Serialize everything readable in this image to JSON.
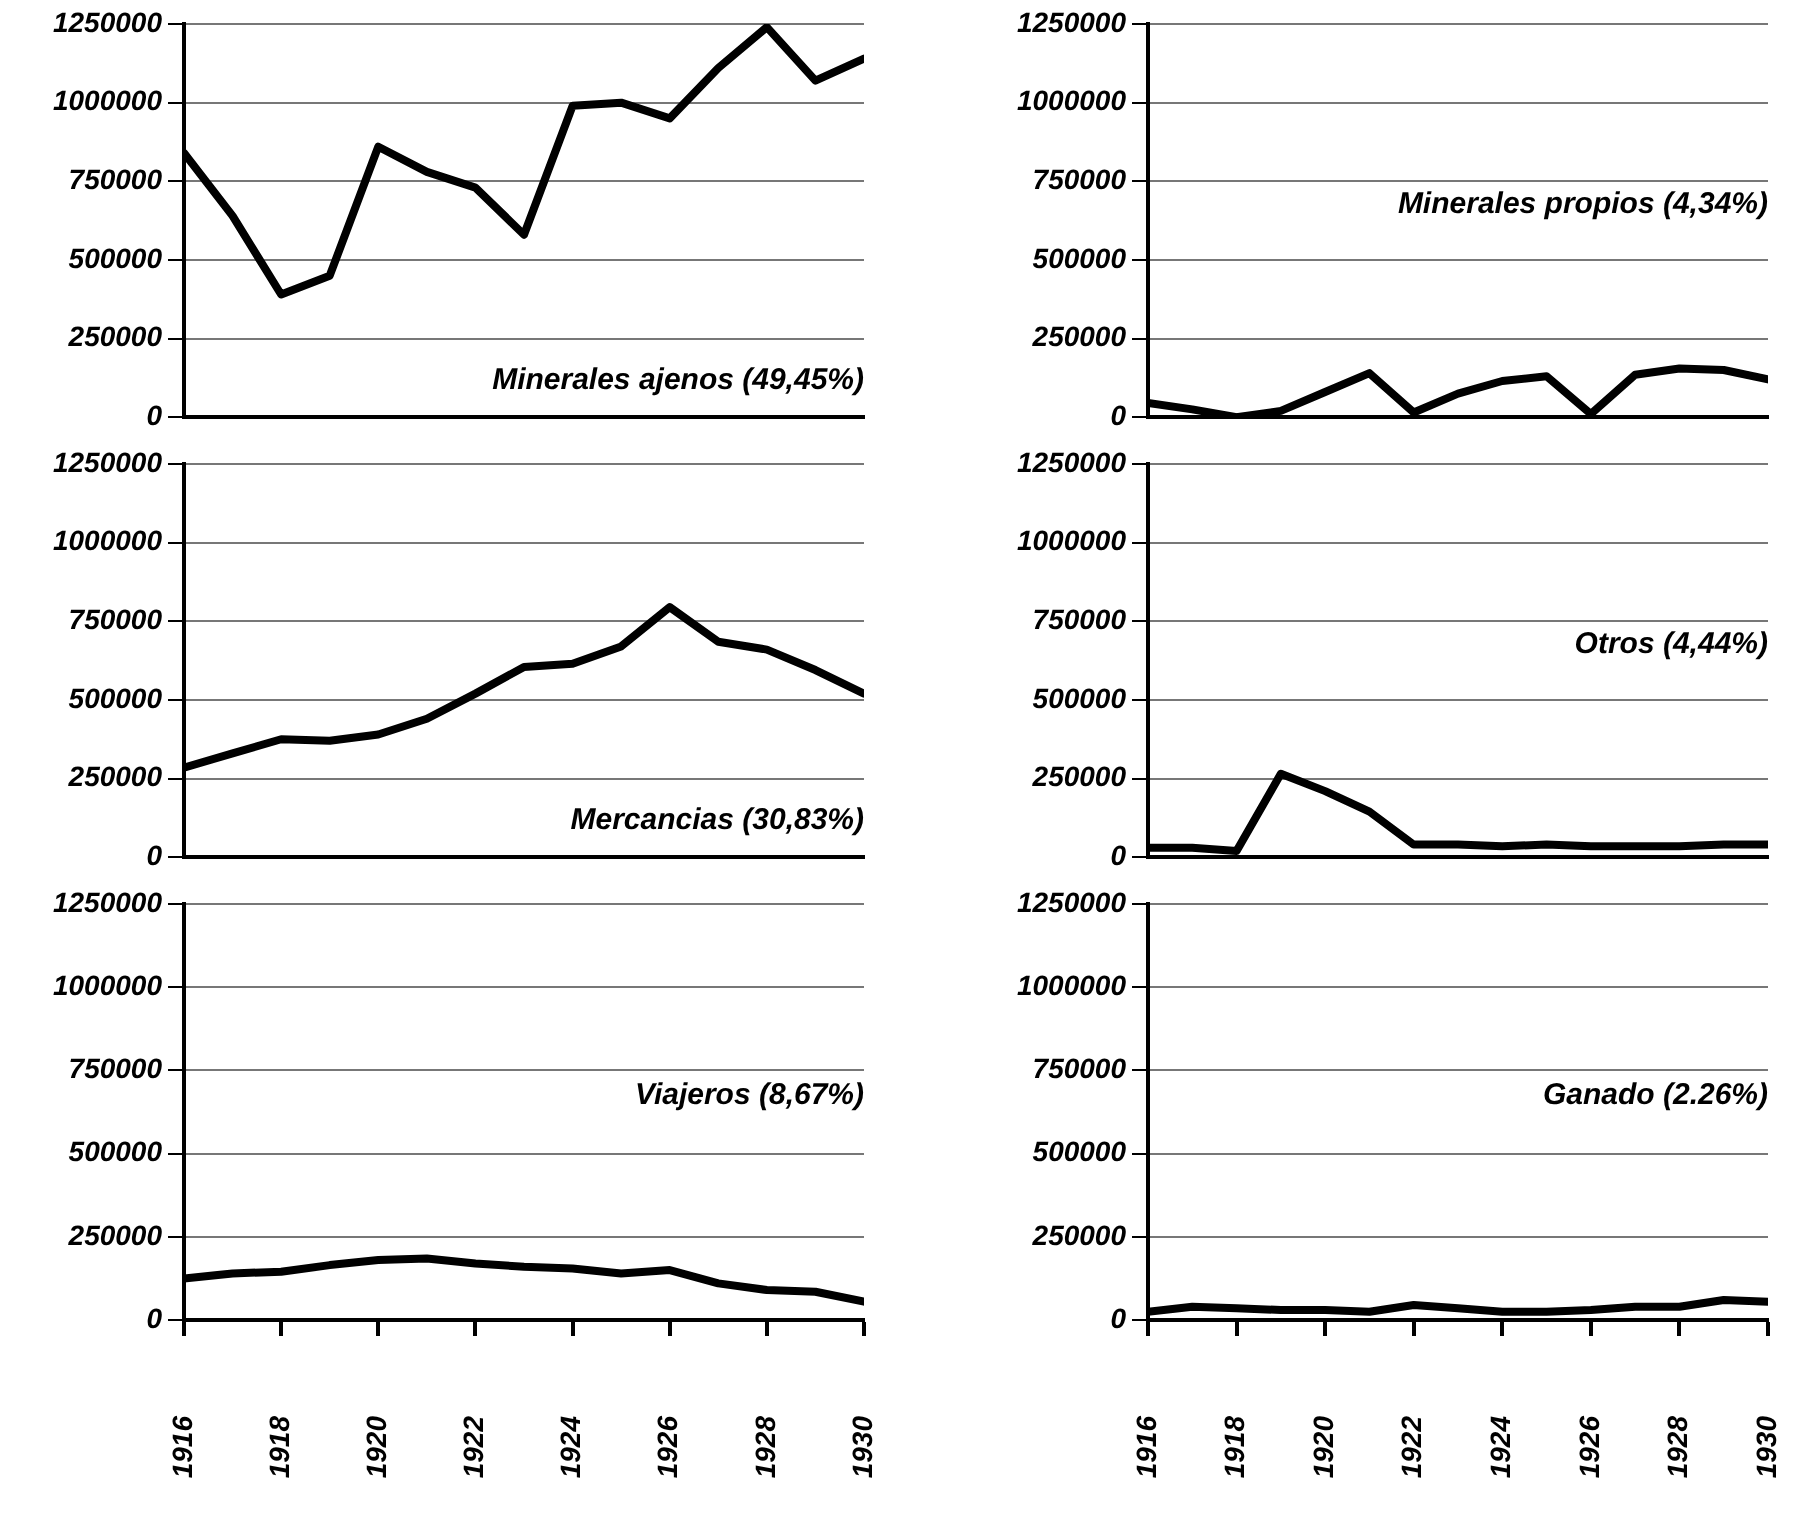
{
  "chart_data": [
    {
      "type": "line",
      "x": [
        1916,
        1917,
        1918,
        1919,
        1920,
        1921,
        1922,
        1923,
        1924,
        1925,
        1926,
        1927,
        1928,
        1929,
        1930
      ],
      "series": [
        {
          "color": "#000000",
          "values": [
            840000,
            640000,
            390000,
            450000,
            860000,
            780000,
            730000,
            580000,
            990000,
            1000000,
            950000,
            1110000,
            1240000,
            1070000,
            1140000
          ]
        }
      ],
      "annotations": [
        "Minerales ajenos (49,45%)"
      ],
      "xlim": [
        1916,
        1930
      ],
      "xticks": [
        1916,
        1918,
        1920,
        1922,
        1924,
        1926,
        1928,
        1930
      ],
      "ylim": [
        0,
        1250000
      ],
      "yticks": [
        0,
        250000,
        500000,
        750000,
        1000000,
        1250000
      ],
      "grid": "y",
      "marker": "none",
      "line_style": "solid",
      "legend": false,
      "tick_labels": "y"
    },
    {
      "type": "line",
      "x": [
        1916,
        1917,
        1918,
        1919,
        1920,
        1921,
        1922,
        1923,
        1924,
        1925,
        1926,
        1927,
        1928,
        1929,
        1930
      ],
      "series": [
        {
          "color": "#000000",
          "values": [
            45000,
            25000,
            0,
            20000,
            80000,
            140000,
            15000,
            75000,
            115000,
            130000,
            10000,
            135000,
            155000,
            150000,
            120000
          ]
        }
      ],
      "annotations": [
        "Minerales propios (4,34%)"
      ],
      "xlim": [
        1916,
        1930
      ],
      "xticks": [
        1916,
        1918,
        1920,
        1922,
        1924,
        1926,
        1928,
        1930
      ],
      "ylim": [
        0,
        1250000
      ],
      "yticks": [
        0,
        250000,
        500000,
        750000,
        1000000,
        1250000
      ],
      "grid": "y",
      "marker": "none",
      "line_style": "solid",
      "legend": false,
      "tick_labels": "y"
    },
    {
      "type": "line",
      "x": [
        1916,
        1917,
        1918,
        1919,
        1920,
        1921,
        1922,
        1923,
        1924,
        1925,
        1926,
        1927,
        1928,
        1929,
        1930
      ],
      "series": [
        {
          "color": "#000000",
          "values": [
            285000,
            330000,
            375000,
            370000,
            390000,
            440000,
            520000,
            605000,
            615000,
            670000,
            795000,
            685000,
            660000,
            595000,
            520000
          ]
        }
      ],
      "annotations": [
        "Mercancias (30,83%)"
      ],
      "xlim": [
        1916,
        1930
      ],
      "xticks": [
        1916,
        1918,
        1920,
        1922,
        1924,
        1926,
        1928,
        1930
      ],
      "ylim": [
        0,
        1250000
      ],
      "yticks": [
        0,
        250000,
        500000,
        750000,
        1000000,
        1250000
      ],
      "grid": "y",
      "marker": "none",
      "line_style": "solid",
      "legend": false,
      "tick_labels": "y"
    },
    {
      "type": "line",
      "x": [
        1916,
        1917,
        1918,
        1919,
        1920,
        1921,
        1922,
        1923,
        1924,
        1925,
        1926,
        1927,
        1928,
        1929,
        1930
      ],
      "series": [
        {
          "color": "#000000",
          "values": [
            30000,
            30000,
            20000,
            265000,
            210000,
            145000,
            40000,
            40000,
            35000,
            40000,
            35000,
            35000,
            35000,
            40000,
            40000
          ]
        }
      ],
      "annotations": [
        "Otros (4,44%)"
      ],
      "xlim": [
        1916,
        1930
      ],
      "xticks": [
        1916,
        1918,
        1920,
        1922,
        1924,
        1926,
        1928,
        1930
      ],
      "ylim": [
        0,
        1250000
      ],
      "yticks": [
        0,
        250000,
        500000,
        750000,
        1000000,
        1250000
      ],
      "grid": "y",
      "marker": "none",
      "line_style": "solid",
      "legend": false,
      "tick_labels": "y"
    },
    {
      "type": "line",
      "x": [
        1916,
        1917,
        1918,
        1919,
        1920,
        1921,
        1922,
        1923,
        1924,
        1925,
        1926,
        1927,
        1928,
        1929,
        1930
      ],
      "series": [
        {
          "color": "#000000",
          "values": [
            125000,
            140000,
            145000,
            165000,
            180000,
            185000,
            170000,
            160000,
            155000,
            140000,
            150000,
            110000,
            90000,
            85000,
            55000
          ]
        }
      ],
      "annotations": [
        "Viajeros (8,67%)"
      ],
      "xlim": [
        1916,
        1930
      ],
      "xticks": [
        1916,
        1918,
        1920,
        1922,
        1924,
        1926,
        1928,
        1930
      ],
      "ylim": [
        0,
        1250000
      ],
      "yticks": [
        0,
        250000,
        500000,
        750000,
        1000000,
        1250000
      ],
      "grid": "y",
      "marker": "none",
      "line_style": "solid",
      "legend": false
    },
    {
      "type": "line",
      "x": [
        1916,
        1917,
        1918,
        1919,
        1920,
        1921,
        1922,
        1923,
        1924,
        1925,
        1926,
        1927,
        1928,
        1929,
        1930
      ],
      "series": [
        {
          "color": "#000000",
          "values": [
            25000,
            40000,
            35000,
            30000,
            30000,
            25000,
            45000,
            35000,
            25000,
            25000,
            30000,
            40000,
            40000,
            60000,
            55000
          ]
        }
      ],
      "annotations": [
        "Ganado (2.26%)"
      ],
      "xlim": [
        1916,
        1930
      ],
      "xticks": [
        1916,
        1918,
        1920,
        1922,
        1924,
        1926,
        1928,
        1930
      ],
      "ylim": [
        0,
        1250000
      ],
      "yticks": [
        0,
        250000,
        500000,
        750000,
        1000000,
        1250000
      ],
      "grid": "y",
      "marker": "none",
      "line_style": "solid",
      "legend": false
    }
  ]
}
